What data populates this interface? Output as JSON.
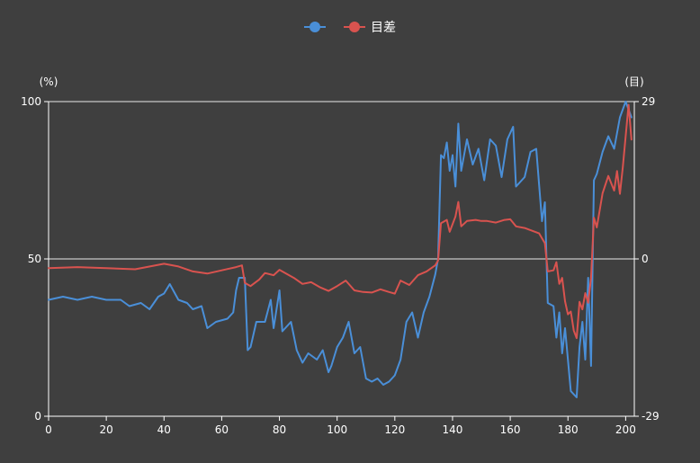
{
  "chart_data": {
    "type": "line",
    "title": "",
    "legend_position": "top-center",
    "x": {
      "min": 0,
      "max": 203,
      "ticks": [
        0,
        20,
        40,
        60,
        80,
        100,
        120,
        140,
        160,
        180,
        200
      ],
      "tick_labels": [
        "0",
        "20",
        "40",
        "60",
        "80",
        "100",
        "120",
        "140",
        "160",
        "180",
        "200"
      ]
    },
    "y_left": {
      "unit_label": "(%)",
      "range": [
        0,
        100
      ],
      "ticks": [
        0,
        50,
        100
      ],
      "tick_labels": [
        "0",
        "50",
        "100"
      ]
    },
    "y_right": {
      "unit_label": "(目)",
      "range": [
        -29,
        29
      ],
      "ticks": [
        -29,
        0,
        29
      ],
      "tick_labels": [
        "-29",
        "0",
        "29"
      ]
    },
    "grid": true,
    "series": [
      {
        "name": "",
        "color": "#4a8fd8",
        "axis": "left",
        "points": [
          [
            0,
            37
          ],
          [
            5,
            38
          ],
          [
            10,
            37
          ],
          [
            15,
            38
          ],
          [
            20,
            37
          ],
          [
            25,
            37
          ],
          [
            28,
            35
          ],
          [
            32,
            36
          ],
          [
            35,
            34
          ],
          [
            38,
            38
          ],
          [
            40,
            39
          ],
          [
            42,
            42
          ],
          [
            45,
            37
          ],
          [
            48,
            36
          ],
          [
            50,
            34
          ],
          [
            53,
            35
          ],
          [
            55,
            28
          ],
          [
            58,
            30
          ],
          [
            62,
            31
          ],
          [
            64,
            33
          ],
          [
            65,
            40
          ],
          [
            66,
            44
          ],
          [
            68,
            44
          ],
          [
            69,
            21
          ],
          [
            70,
            22
          ],
          [
            72,
            30
          ],
          [
            75,
            30
          ],
          [
            77,
            37
          ],
          [
            78,
            28
          ],
          [
            80,
            40
          ],
          [
            81,
            27
          ],
          [
            84,
            30
          ],
          [
            86,
            21
          ],
          [
            88,
            17
          ],
          [
            90,
            20
          ],
          [
            93,
            18
          ],
          [
            95,
            21
          ],
          [
            97,
            14
          ],
          [
            98,
            16
          ],
          [
            100,
            22
          ],
          [
            102,
            25
          ],
          [
            104,
            30
          ],
          [
            106,
            20
          ],
          [
            108,
            22
          ],
          [
            110,
            12
          ],
          [
            112,
            11
          ],
          [
            114,
            12
          ],
          [
            116,
            10
          ],
          [
            118,
            11
          ],
          [
            120,
            13
          ],
          [
            122,
            18
          ],
          [
            124,
            30
          ],
          [
            126,
            33
          ],
          [
            128,
            25
          ],
          [
            130,
            33
          ],
          [
            132,
            38
          ],
          [
            134,
            45
          ],
          [
            135,
            50
          ],
          [
            136,
            83
          ],
          [
            137,
            82
          ],
          [
            138,
            87
          ],
          [
            139,
            78
          ],
          [
            140,
            83
          ],
          [
            141,
            73
          ],
          [
            142,
            93
          ],
          [
            143,
            78
          ],
          [
            145,
            88
          ],
          [
            147,
            80
          ],
          [
            149,
            85
          ],
          [
            151,
            75
          ],
          [
            153,
            88
          ],
          [
            155,
            86
          ],
          [
            157,
            76
          ],
          [
            159,
            88
          ],
          [
            161,
            92
          ],
          [
            162,
            73
          ],
          [
            165,
            76
          ],
          [
            167,
            84
          ],
          [
            169,
            85
          ],
          [
            171,
            62
          ],
          [
            172,
            68
          ],
          [
            173,
            36
          ],
          [
            175,
            35
          ],
          [
            176,
            25
          ],
          [
            177,
            33
          ],
          [
            178,
            20
          ],
          [
            179,
            28
          ],
          [
            181,
            8
          ],
          [
            183,
            6
          ],
          [
            184,
            22
          ],
          [
            185,
            30
          ],
          [
            186,
            18
          ],
          [
            187,
            44
          ],
          [
            188,
            16
          ],
          [
            189,
            75
          ],
          [
            190,
            77
          ],
          [
            192,
            84
          ],
          [
            194,
            89
          ],
          [
            196,
            85
          ],
          [
            198,
            95
          ],
          [
            200,
            100
          ],
          [
            202,
            95
          ]
        ]
      },
      {
        "name": "目差",
        "color": "#d9534f",
        "axis": "right",
        "points": [
          [
            0,
            -1.7
          ],
          [
            10,
            -1.5
          ],
          [
            20,
            -1.7
          ],
          [
            30,
            -1.9
          ],
          [
            40,
            -0.9
          ],
          [
            45,
            -1.4
          ],
          [
            50,
            -2.3
          ],
          [
            55,
            -2.7
          ],
          [
            60,
            -2.1
          ],
          [
            65,
            -1.5
          ],
          [
            67,
            -1.2
          ],
          [
            68,
            -4.4
          ],
          [
            70,
            -5.0
          ],
          [
            73,
            -3.8
          ],
          [
            75,
            -2.6
          ],
          [
            78,
            -3.0
          ],
          [
            80,
            -2.0
          ],
          [
            82,
            -2.6
          ],
          [
            85,
            -3.5
          ],
          [
            88,
            -4.6
          ],
          [
            91,
            -4.3
          ],
          [
            94,
            -5.2
          ],
          [
            97,
            -5.9
          ],
          [
            100,
            -5.0
          ],
          [
            103,
            -4.0
          ],
          [
            106,
            -5.8
          ],
          [
            109,
            -6.1
          ],
          [
            112,
            -6.2
          ],
          [
            115,
            -5.6
          ],
          [
            118,
            -6.1
          ],
          [
            120,
            -6.4
          ],
          [
            122,
            -4.0
          ],
          [
            125,
            -4.8
          ],
          [
            128,
            -3.0
          ],
          [
            131,
            -2.3
          ],
          [
            134,
            -1.2
          ],
          [
            135,
            -0.3
          ],
          [
            136,
            6.6
          ],
          [
            138,
            7.2
          ],
          [
            139,
            5.0
          ],
          [
            141,
            7.8
          ],
          [
            142,
            10.5
          ],
          [
            143,
            6.0
          ],
          [
            145,
            7.0
          ],
          [
            148,
            7.2
          ],
          [
            150,
            7.0
          ],
          [
            152,
            7.0
          ],
          [
            155,
            6.7
          ],
          [
            158,
            7.2
          ],
          [
            160,
            7.3
          ],
          [
            162,
            6.0
          ],
          [
            165,
            5.7
          ],
          [
            168,
            5.1
          ],
          [
            170,
            4.7
          ],
          [
            172,
            2.9
          ],
          [
            173,
            -2.3
          ],
          [
            175,
            -2.1
          ],
          [
            176,
            -0.6
          ],
          [
            177,
            -4.6
          ],
          [
            178,
            -3.5
          ],
          [
            179,
            -7.8
          ],
          [
            180,
            -10.2
          ],
          [
            181,
            -9.7
          ],
          [
            182,
            -13.2
          ],
          [
            183,
            -14.6
          ],
          [
            184,
            -7.9
          ],
          [
            185,
            -9.3
          ],
          [
            186,
            -6.3
          ],
          [
            187,
            -8.1
          ],
          [
            188,
            -3.5
          ],
          [
            189,
            7.6
          ],
          [
            190,
            5.8
          ],
          [
            192,
            12.1
          ],
          [
            194,
            15.3
          ],
          [
            196,
            12.6
          ],
          [
            197,
            16.2
          ],
          [
            198,
            12.0
          ],
          [
            199,
            16.9
          ],
          [
            201,
            28.4
          ],
          [
            202,
            22.0
          ]
        ]
      }
    ]
  },
  "legend": {
    "items": [
      {
        "label": "",
        "color": "#4a8fd8"
      },
      {
        "label": "目差",
        "color": "#d9534f"
      }
    ]
  }
}
